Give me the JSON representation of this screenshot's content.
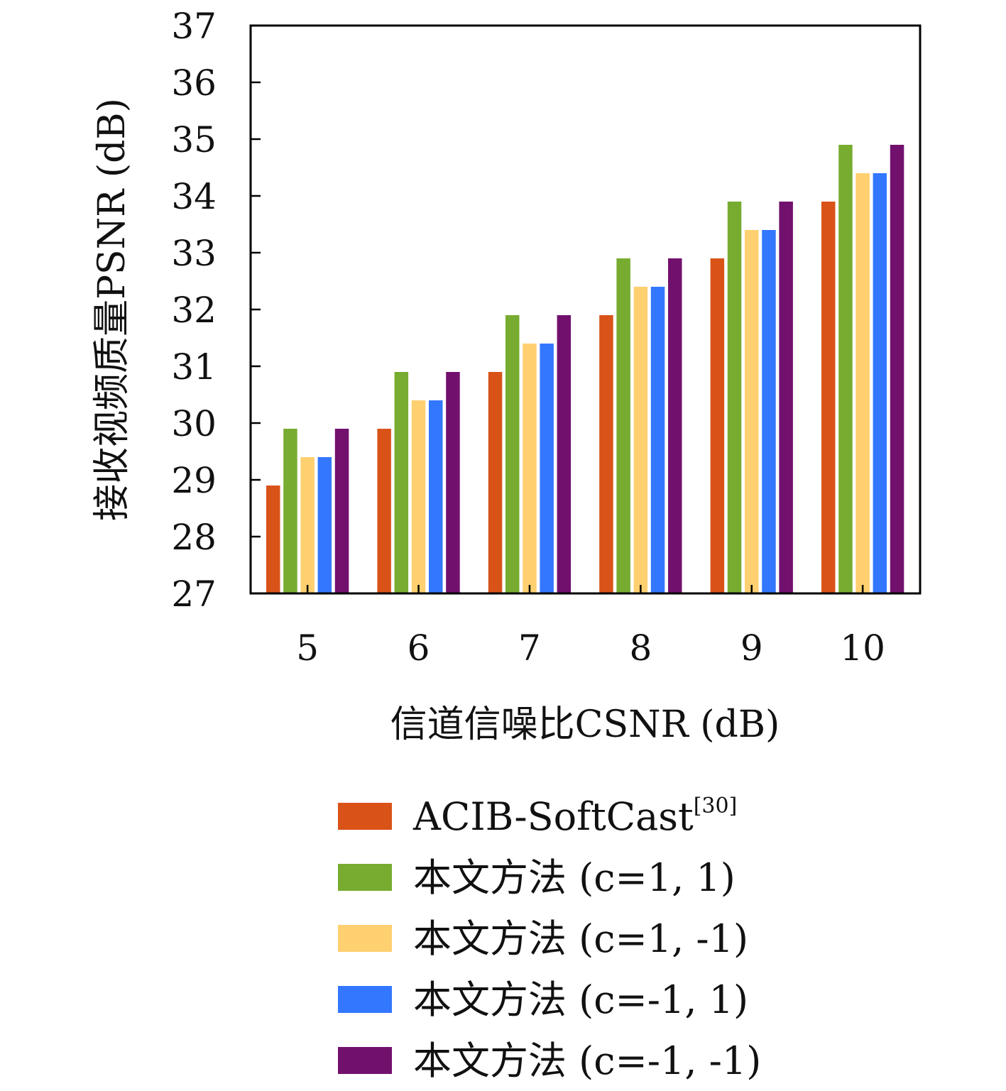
{
  "chart_data": {
    "type": "bar",
    "title": "",
    "xlabel": "信道信噪比CSNR (dB)",
    "ylabel": "接收视频质量PSNR (dB)",
    "categories": [
      "5",
      "6",
      "7",
      "8",
      "9",
      "10"
    ],
    "ylim": [
      27,
      37
    ],
    "yticks": [
      "27",
      "28",
      "29",
      "30",
      "31",
      "32",
      "33",
      "34",
      "35",
      "36",
      "37"
    ],
    "grid": false,
    "legend_position": "bottom",
    "series": [
      {
        "name": "ACIB-SoftCast",
        "name_superscript": "[30]",
        "color": "#D95319",
        "values": [
          28.9,
          29.9,
          30.9,
          31.9,
          32.9,
          33.9
        ]
      },
      {
        "name": "本文方法 (c=1, 1)",
        "color": "#77AC30",
        "values": [
          29.9,
          30.9,
          31.9,
          32.9,
          33.9,
          34.9
        ]
      },
      {
        "name": "本文方法 (c=1, -1)",
        "color": "#FFD070",
        "values": [
          29.4,
          30.4,
          31.4,
          32.4,
          33.4,
          34.4
        ]
      },
      {
        "name": "本文方法 (c=-1, 1)",
        "color": "#3377FF",
        "values": [
          29.4,
          30.4,
          31.4,
          32.4,
          33.4,
          34.4
        ]
      },
      {
        "name": "本文方法 (c=-1, -1)",
        "color": "#72106E",
        "values": [
          29.9,
          30.9,
          31.9,
          32.9,
          33.9,
          34.9
        ]
      }
    ]
  }
}
